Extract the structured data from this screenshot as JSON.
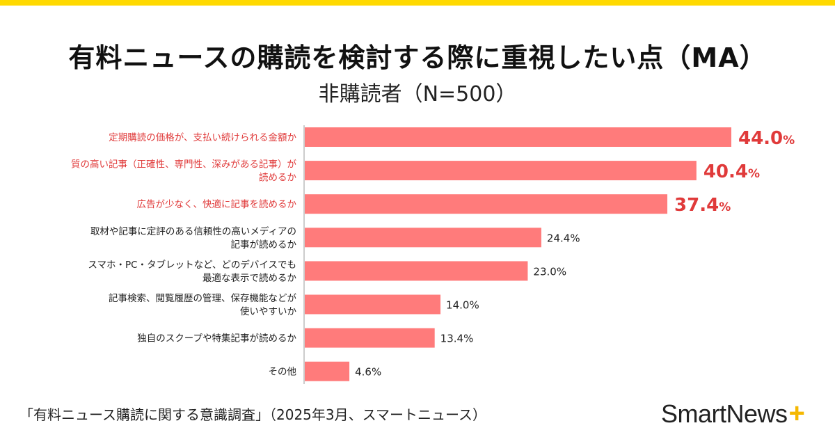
{
  "chart_data": {
    "type": "bar",
    "orientation": "horizontal",
    "title": "有料ニュースの購読を検討する際に重視したい点（MA）",
    "subtitle": "非購読者（N=500）",
    "categories": [
      [
        "定期購読の価格が、支払い続けられる金額か"
      ],
      [
        "質の高い記事（正確性、専門性、深みがある記事）が",
        "読めるか"
      ],
      [
        "広告が少なく、快適に記事を読めるか"
      ],
      [
        "取材や記事に定評のある信頼性の高いメディアの",
        "記事が読めるか"
      ],
      [
        "スマホ・PC・タブレットなど、どのデバイスでも",
        "最適な表示で読めるか"
      ],
      [
        "記事検索、閲覧履歴の管理、保存機能などが",
        "使いやすいか"
      ],
      [
        "独自のスクープや特集記事が読めるか"
      ],
      [
        "その他"
      ]
    ],
    "values": [
      44.0,
      40.4,
      37.4,
      24.4,
      23.0,
      14.0,
      13.4,
      4.6
    ],
    "unit": "%",
    "highlighted_top": 3,
    "xlim": [
      0,
      44
    ],
    "grid": false,
    "colors": {
      "bar": "#ff7b7b",
      "highlight_text": "#e03a3a",
      "text": "#222222",
      "axis": "#cccccc"
    }
  },
  "footer": {
    "source": "「有料ニュース購読に関する意識調査」（2025年3月、スマートニュース）"
  },
  "logo": {
    "text": "SmartNews",
    "plus": "+"
  },
  "colors": {
    "top_stripe": "#ffd900",
    "logo_plus": "#f5b800"
  }
}
